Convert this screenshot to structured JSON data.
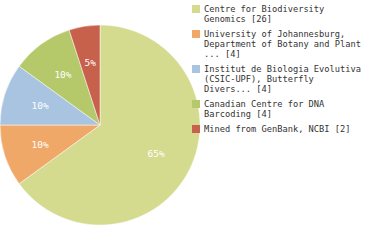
{
  "chart_data": {
    "type": "pie",
    "categories": [
      "Centre for Biodiversity\nGenomics [26]",
      "University of Johannesburg,\nDepartment of Botany and Plant\n... [4]",
      "Institut de Biologia Evolutiva\n(CSIC-UPF), Butterfly\nDivers... [4]",
      "Canadian Centre for DNA\nBarcoding [4]",
      "Mined from GenBank, NCBI [2]"
    ],
    "values": [
      65,
      10,
      10,
      10,
      5
    ],
    "value_labels": [
      "65%",
      "10%",
      "10%",
      "10%",
      "5%"
    ],
    "colors": [
      "#d4db8e",
      "#f0a868",
      "#a8c4e0",
      "#b5c96a",
      "#c8614c"
    ],
    "data_labels": true,
    "legend": "right"
  }
}
